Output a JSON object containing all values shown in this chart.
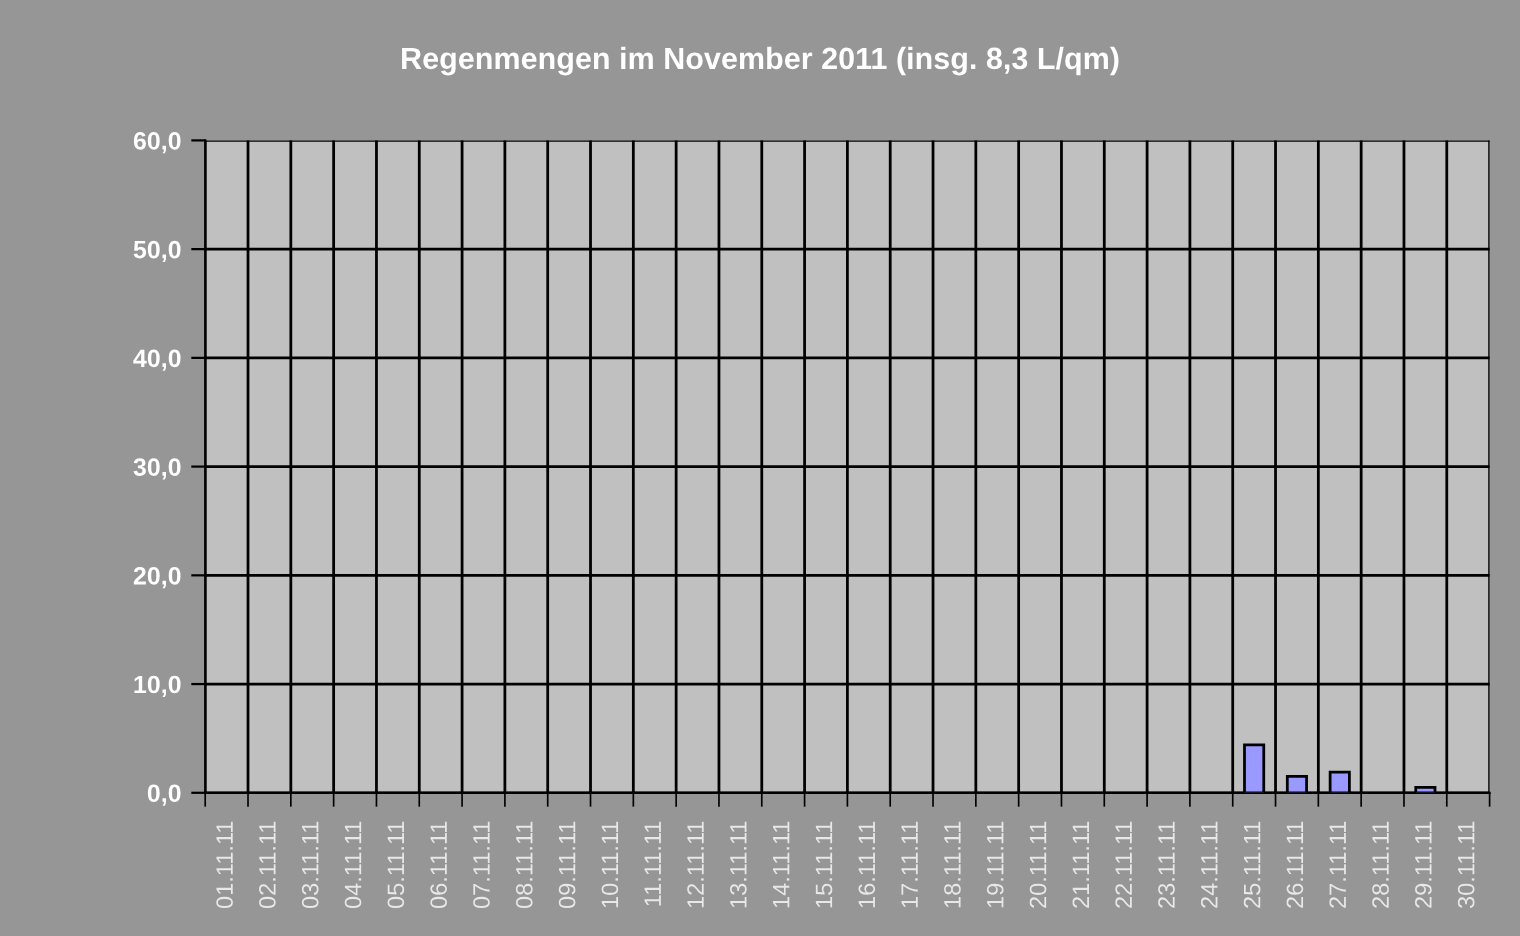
{
  "chart_data": {
    "type": "bar",
    "title": "Regenmengen im November 2011 (insg. 8,3 L/qm)",
    "categories": [
      "01.11.11",
      "02.11.11",
      "03.11.11",
      "04.11.11",
      "05.11.11",
      "06.11.11",
      "07.11.11",
      "08.11.11",
      "09.11.11",
      "10.11.11",
      "11.11.11",
      "12.11.11",
      "13.11.11",
      "14.11.11",
      "15.11.11",
      "16.11.11",
      "17.11.11",
      "18.11.11",
      "19.11.11",
      "20.11.11",
      "21.11.11",
      "22.11.11",
      "23.11.11",
      "24.11.11",
      "25.11.11",
      "26.11.11",
      "27.11.11",
      "28.11.11",
      "29.11.11",
      "30.11.11"
    ],
    "values": [
      0,
      0,
      0,
      0,
      0,
      0,
      0,
      0,
      0,
      0,
      0,
      0,
      0,
      0,
      0,
      0,
      0,
      0,
      0,
      0,
      0,
      0,
      0,
      0,
      4.4,
      1.5,
      1.9,
      0,
      0.5,
      0
    ],
    "color": "#9999ff",
    "ylim": [
      0,
      60
    ],
    "yticks": [
      {
        "value": 0,
        "label": "0,0"
      },
      {
        "value": 10,
        "label": "10,0"
      },
      {
        "value": 20,
        "label": "20,0"
      },
      {
        "value": 30,
        "label": "30,0"
      },
      {
        "value": 40,
        "label": "40,0"
      },
      {
        "value": 50,
        "label": "50,0"
      },
      {
        "value": 60,
        "label": "60,0"
      }
    ],
    "grid": true
  }
}
